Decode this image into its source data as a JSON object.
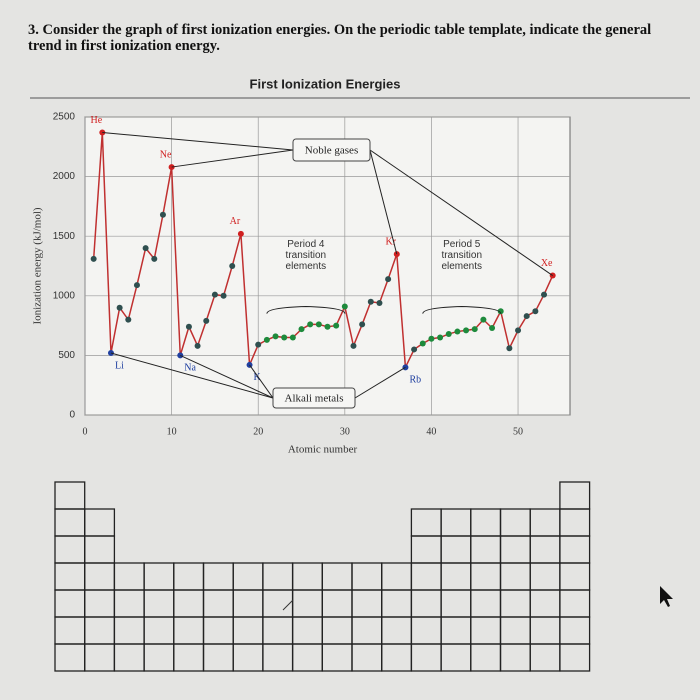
{
  "question": "3. Consider the graph of first ionization energies. On the periodic table template, indicate the general trend in first ionization energy.",
  "chart_data": {
    "type": "line",
    "title": "First Ionization Energies",
    "x_label": "Atomic number",
    "y_label": "Ionization energy (kJ/mol)",
    "x": [
      1,
      2,
      3,
      4,
      5,
      6,
      7,
      8,
      9,
      10,
      11,
      12,
      13,
      14,
      15,
      16,
      17,
      18,
      19,
      20,
      21,
      22,
      23,
      24,
      25,
      26,
      27,
      28,
      29,
      30,
      31,
      32,
      33,
      34,
      35,
      36,
      37,
      38,
      39,
      40,
      41,
      42,
      43,
      44,
      45,
      46,
      47,
      48,
      49,
      50,
      51,
      52,
      53,
      54
    ],
    "series": [
      {
        "color": "#c03030",
        "marker_color": "#2f4f4f",
        "values": [
          1310,
          2370,
          520,
          900,
          800,
          1090,
          1400,
          1310,
          1680,
          2080,
          500,
          740,
          580,
          790,
          1010,
          1000,
          1250,
          1520,
          420,
          590,
          630,
          660,
          650,
          650,
          720,
          760,
          760,
          740,
          750,
          910,
          580,
          760,
          950,
          940,
          1140,
          1350,
          400,
          550,
          600,
          640,
          650,
          680,
          700,
          710,
          720,
          800,
          730,
          870,
          560,
          710,
          830,
          870,
          1010,
          1170
        ]
      }
    ],
    "xlim": [
      0,
      56
    ],
    "ylim": [
      0,
      2500
    ],
    "xticks": [
      0,
      10,
      20,
      30,
      40,
      50
    ],
    "yticks": [
      0,
      500,
      1000,
      1500,
      2000,
      2500
    ],
    "grid": true,
    "point_labels": [
      {
        "x": 2,
        "text": "He",
        "color": "#d02020"
      },
      {
        "x": 10,
        "text": "Ne",
        "color": "#d02020"
      },
      {
        "x": 18,
        "text": "Ar",
        "color": "#d02020"
      },
      {
        "x": 36,
        "text": "Kr",
        "color": "#d02020"
      },
      {
        "x": 54,
        "text": "Xe",
        "color": "#d02020"
      },
      {
        "x": 3,
        "text": "Li",
        "color": "#2040a0"
      },
      {
        "x": 11,
        "text": "Na",
        "color": "#2040a0"
      },
      {
        "x": 19,
        "text": "K",
        "color": "#2040a0"
      },
      {
        "x": 37,
        "text": "Rb",
        "color": "#2040a0"
      }
    ],
    "groups": [
      {
        "text": "Noble gases",
        "members": [
          2,
          10,
          36,
          54
        ]
      },
      {
        "text": "Alkali metals",
        "members": [
          3,
          11,
          19,
          37
        ]
      },
      {
        "text": "Period 4 transition elements",
        "x_range": [
          21,
          30
        ],
        "color": "#1e8a3c"
      },
      {
        "text": "Period 5 transition elements",
        "x_range": [
          39,
          48
        ],
        "color": "#1e8a3c"
      }
    ]
  }
}
